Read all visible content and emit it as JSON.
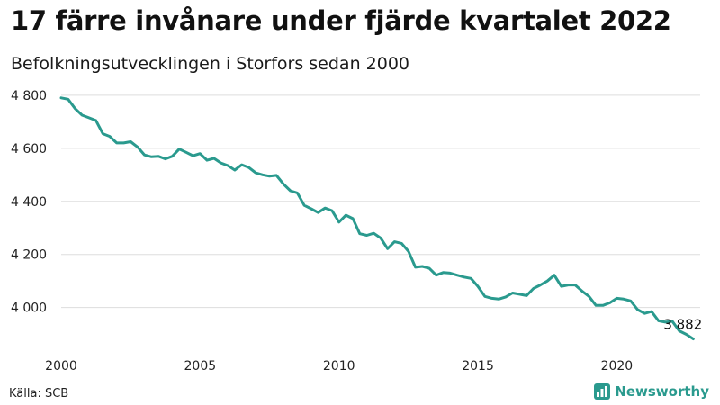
{
  "title": "17 färre invånare under fjärde kvartalet 2022",
  "subtitle": "Befolkningsutvecklingen i Storfors sedan 2000",
  "source": "Källa: SCB",
  "brand": "Newsworthy",
  "colors": {
    "line": "#2a9a8e",
    "grid": "#dddddd",
    "brand": "#2a9a8e"
  },
  "chart_data": {
    "type": "line",
    "title": "17 färre invånare under fjärde kvartalet 2022",
    "subtitle": "Befolkningsutvecklingen i Storfors sedan 2000",
    "xlim": [
      2000,
      2023
    ],
    "ylim": [
      3870,
      4820
    ],
    "x_ticks": [
      2000,
      2005,
      2010,
      2015,
      2020
    ],
    "x_tick_labels": [
      "2000",
      "2005",
      "2010",
      "2015",
      "2020"
    ],
    "y_ticks": [
      4000,
      4200,
      4400,
      4600,
      4800
    ],
    "y_tick_labels": [
      "4 000",
      "4 200",
      "4 400",
      "4 600",
      "4 800"
    ],
    "grid": true,
    "end_label": "3 882",
    "series": [
      {
        "x": [
          2000.0,
          2000.25,
          2000.5,
          2000.75,
          2001.0,
          2001.25,
          2001.5,
          2001.75,
          2002.0,
          2002.25,
          2002.5,
          2002.75,
          2003.0,
          2003.25,
          2003.5,
          2003.75,
          2004.0,
          2004.25,
          2004.5,
          2004.75,
          2005.0,
          2005.25,
          2005.5,
          2005.75,
          2006.0,
          2006.25,
          2006.5,
          2006.75,
          2007.0,
          2007.25,
          2007.5,
          2007.75,
          2008.0,
          2008.25,
          2008.5,
          2008.75,
          2009.0,
          2009.25,
          2009.5,
          2009.75,
          2010.0,
          2010.25,
          2010.5,
          2010.75,
          2011.0,
          2011.25,
          2011.5,
          2011.75,
          2012.0,
          2012.25,
          2012.5,
          2012.75,
          2013.0,
          2013.25,
          2013.5,
          2013.75,
          2014.0,
          2014.25,
          2014.5,
          2014.75,
          2015.0,
          2015.25,
          2015.5,
          2015.75,
          2016.0,
          2016.25,
          2016.5,
          2016.75,
          2017.0,
          2017.25,
          2017.5,
          2017.75,
          2018.0,
          2018.25,
          2018.5,
          2018.75,
          2019.0,
          2019.25,
          2019.5,
          2019.75,
          2020.0,
          2020.25,
          2020.5,
          2020.75,
          2021.0,
          2021.25,
          2021.5,
          2021.75,
          2022.0,
          2022.25,
          2022.5,
          2022.75
        ],
        "values": [
          4790,
          4785,
          4750,
          4725,
          4715,
          4705,
          4655,
          4645,
          4620,
          4620,
          4625,
          4605,
          4575,
          4568,
          4570,
          4560,
          4570,
          4597,
          4585,
          4572,
          4580,
          4555,
          4562,
          4545,
          4535,
          4518,
          4538,
          4528,
          4508,
          4500,
          4495,
          4498,
          4465,
          4440,
          4432,
          4385,
          4372,
          4358,
          4375,
          4365,
          4322,
          4348,
          4335,
          4278,
          4272,
          4280,
          4262,
          4222,
          4248,
          4242,
          4212,
          4152,
          4155,
          4148,
          4122,
          4132,
          4130,
          4122,
          4115,
          4110,
          4080,
          4042,
          4035,
          4032,
          4040,
          4055,
          4050,
          4045,
          4072,
          4085,
          4100,
          4122,
          4080,
          4085,
          4085,
          4062,
          4042,
          4008,
          4008,
          4018,
          4035,
          4032,
          4025,
          3992,
          3978,
          3985,
          3950,
          3945,
          3948,
          3912,
          3899,
          3882
        ]
      }
    ]
  }
}
